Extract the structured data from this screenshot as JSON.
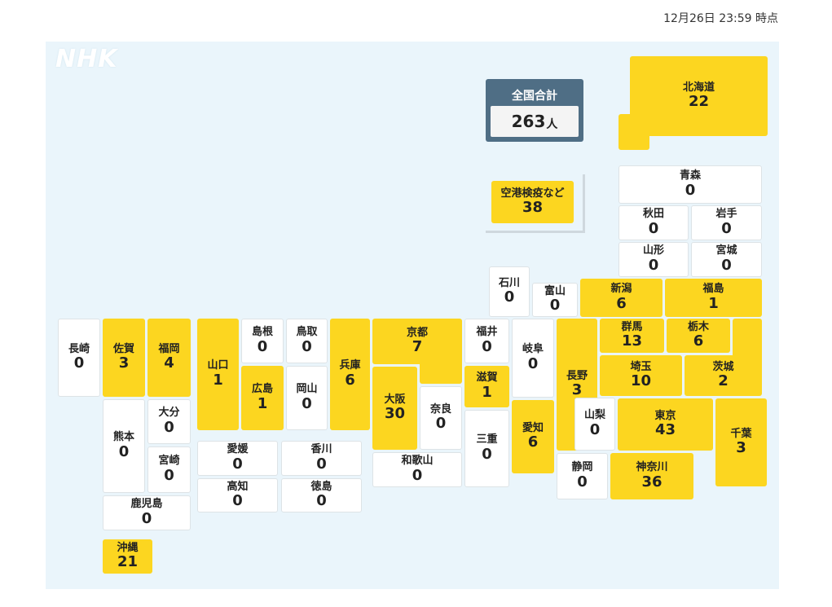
{
  "timestamp": "12月26日 23:59 時点",
  "logo": "NHK",
  "total": {
    "label": "全国合計",
    "count": "263",
    "unit": "人"
  },
  "colors": {
    "highlight": "#fcd620",
    "zero": "#ffffff",
    "background": "#eaf5fb",
    "total_box": "#4f6e85"
  },
  "prefectures": {
    "hokkaido": {
      "name": "北海道",
      "count": "22"
    },
    "aomori": {
      "name": "青森",
      "count": "0"
    },
    "akita": {
      "name": "秋田",
      "count": "0"
    },
    "iwate": {
      "name": "岩手",
      "count": "0"
    },
    "yamagata": {
      "name": "山形",
      "count": "0"
    },
    "miyagi": {
      "name": "宮城",
      "count": "0"
    },
    "airport": {
      "name": "空港検疫など",
      "count": "38"
    },
    "ishikawa": {
      "name": "石川",
      "count": "0"
    },
    "toyama": {
      "name": "富山",
      "count": "0"
    },
    "niigata": {
      "name": "新潟",
      "count": "6"
    },
    "fukushima": {
      "name": "福島",
      "count": "1"
    },
    "nagasaki": {
      "name": "長崎",
      "count": "0"
    },
    "saga": {
      "name": "佐賀",
      "count": "3"
    },
    "fukuoka": {
      "name": "福岡",
      "count": "4"
    },
    "yamaguchi": {
      "name": "山口",
      "count": "1"
    },
    "shimane": {
      "name": "島根",
      "count": "0"
    },
    "tottori": {
      "name": "鳥取",
      "count": "0"
    },
    "hiroshima": {
      "name": "広島",
      "count": "1"
    },
    "okayama": {
      "name": "岡山",
      "count": "0"
    },
    "hyogo": {
      "name": "兵庫",
      "count": "6"
    },
    "kyoto": {
      "name": "京都",
      "count": "7"
    },
    "osaka": {
      "name": "大阪",
      "count": "30"
    },
    "nara": {
      "name": "奈良",
      "count": "0"
    },
    "wakayama": {
      "name": "和歌山",
      "count": "0"
    },
    "fukui": {
      "name": "福井",
      "count": "0"
    },
    "shiga": {
      "name": "滋賀",
      "count": "1"
    },
    "mie": {
      "name": "三重",
      "count": "0"
    },
    "gifu": {
      "name": "岐阜",
      "count": "0"
    },
    "aichi": {
      "name": "愛知",
      "count": "6"
    },
    "nagano": {
      "name": "長野",
      "count": "3"
    },
    "gunma": {
      "name": "群馬",
      "count": "13"
    },
    "tochigi": {
      "name": "栃木",
      "count": "6"
    },
    "saitama": {
      "name": "埼玉",
      "count": "10"
    },
    "ibaraki": {
      "name": "茨城",
      "count": "2"
    },
    "yamanashi": {
      "name": "山梨",
      "count": "0"
    },
    "tokyo": {
      "name": "東京",
      "count": "43"
    },
    "chiba": {
      "name": "千葉",
      "count": "3"
    },
    "shizuoka": {
      "name": "静岡",
      "count": "0"
    },
    "kanagawa": {
      "name": "神奈川",
      "count": "36"
    },
    "kumamoto": {
      "name": "熊本",
      "count": "0"
    },
    "oita": {
      "name": "大分",
      "count": "0"
    },
    "miyazaki": {
      "name": "宮崎",
      "count": "0"
    },
    "kagoshima": {
      "name": "鹿児島",
      "count": "0"
    },
    "ehime": {
      "name": "愛媛",
      "count": "0"
    },
    "kagawa": {
      "name": "香川",
      "count": "0"
    },
    "kochi": {
      "name": "高知",
      "count": "0"
    },
    "tokushima": {
      "name": "徳島",
      "count": "0"
    },
    "okinawa": {
      "name": "沖縄",
      "count": "21"
    }
  }
}
